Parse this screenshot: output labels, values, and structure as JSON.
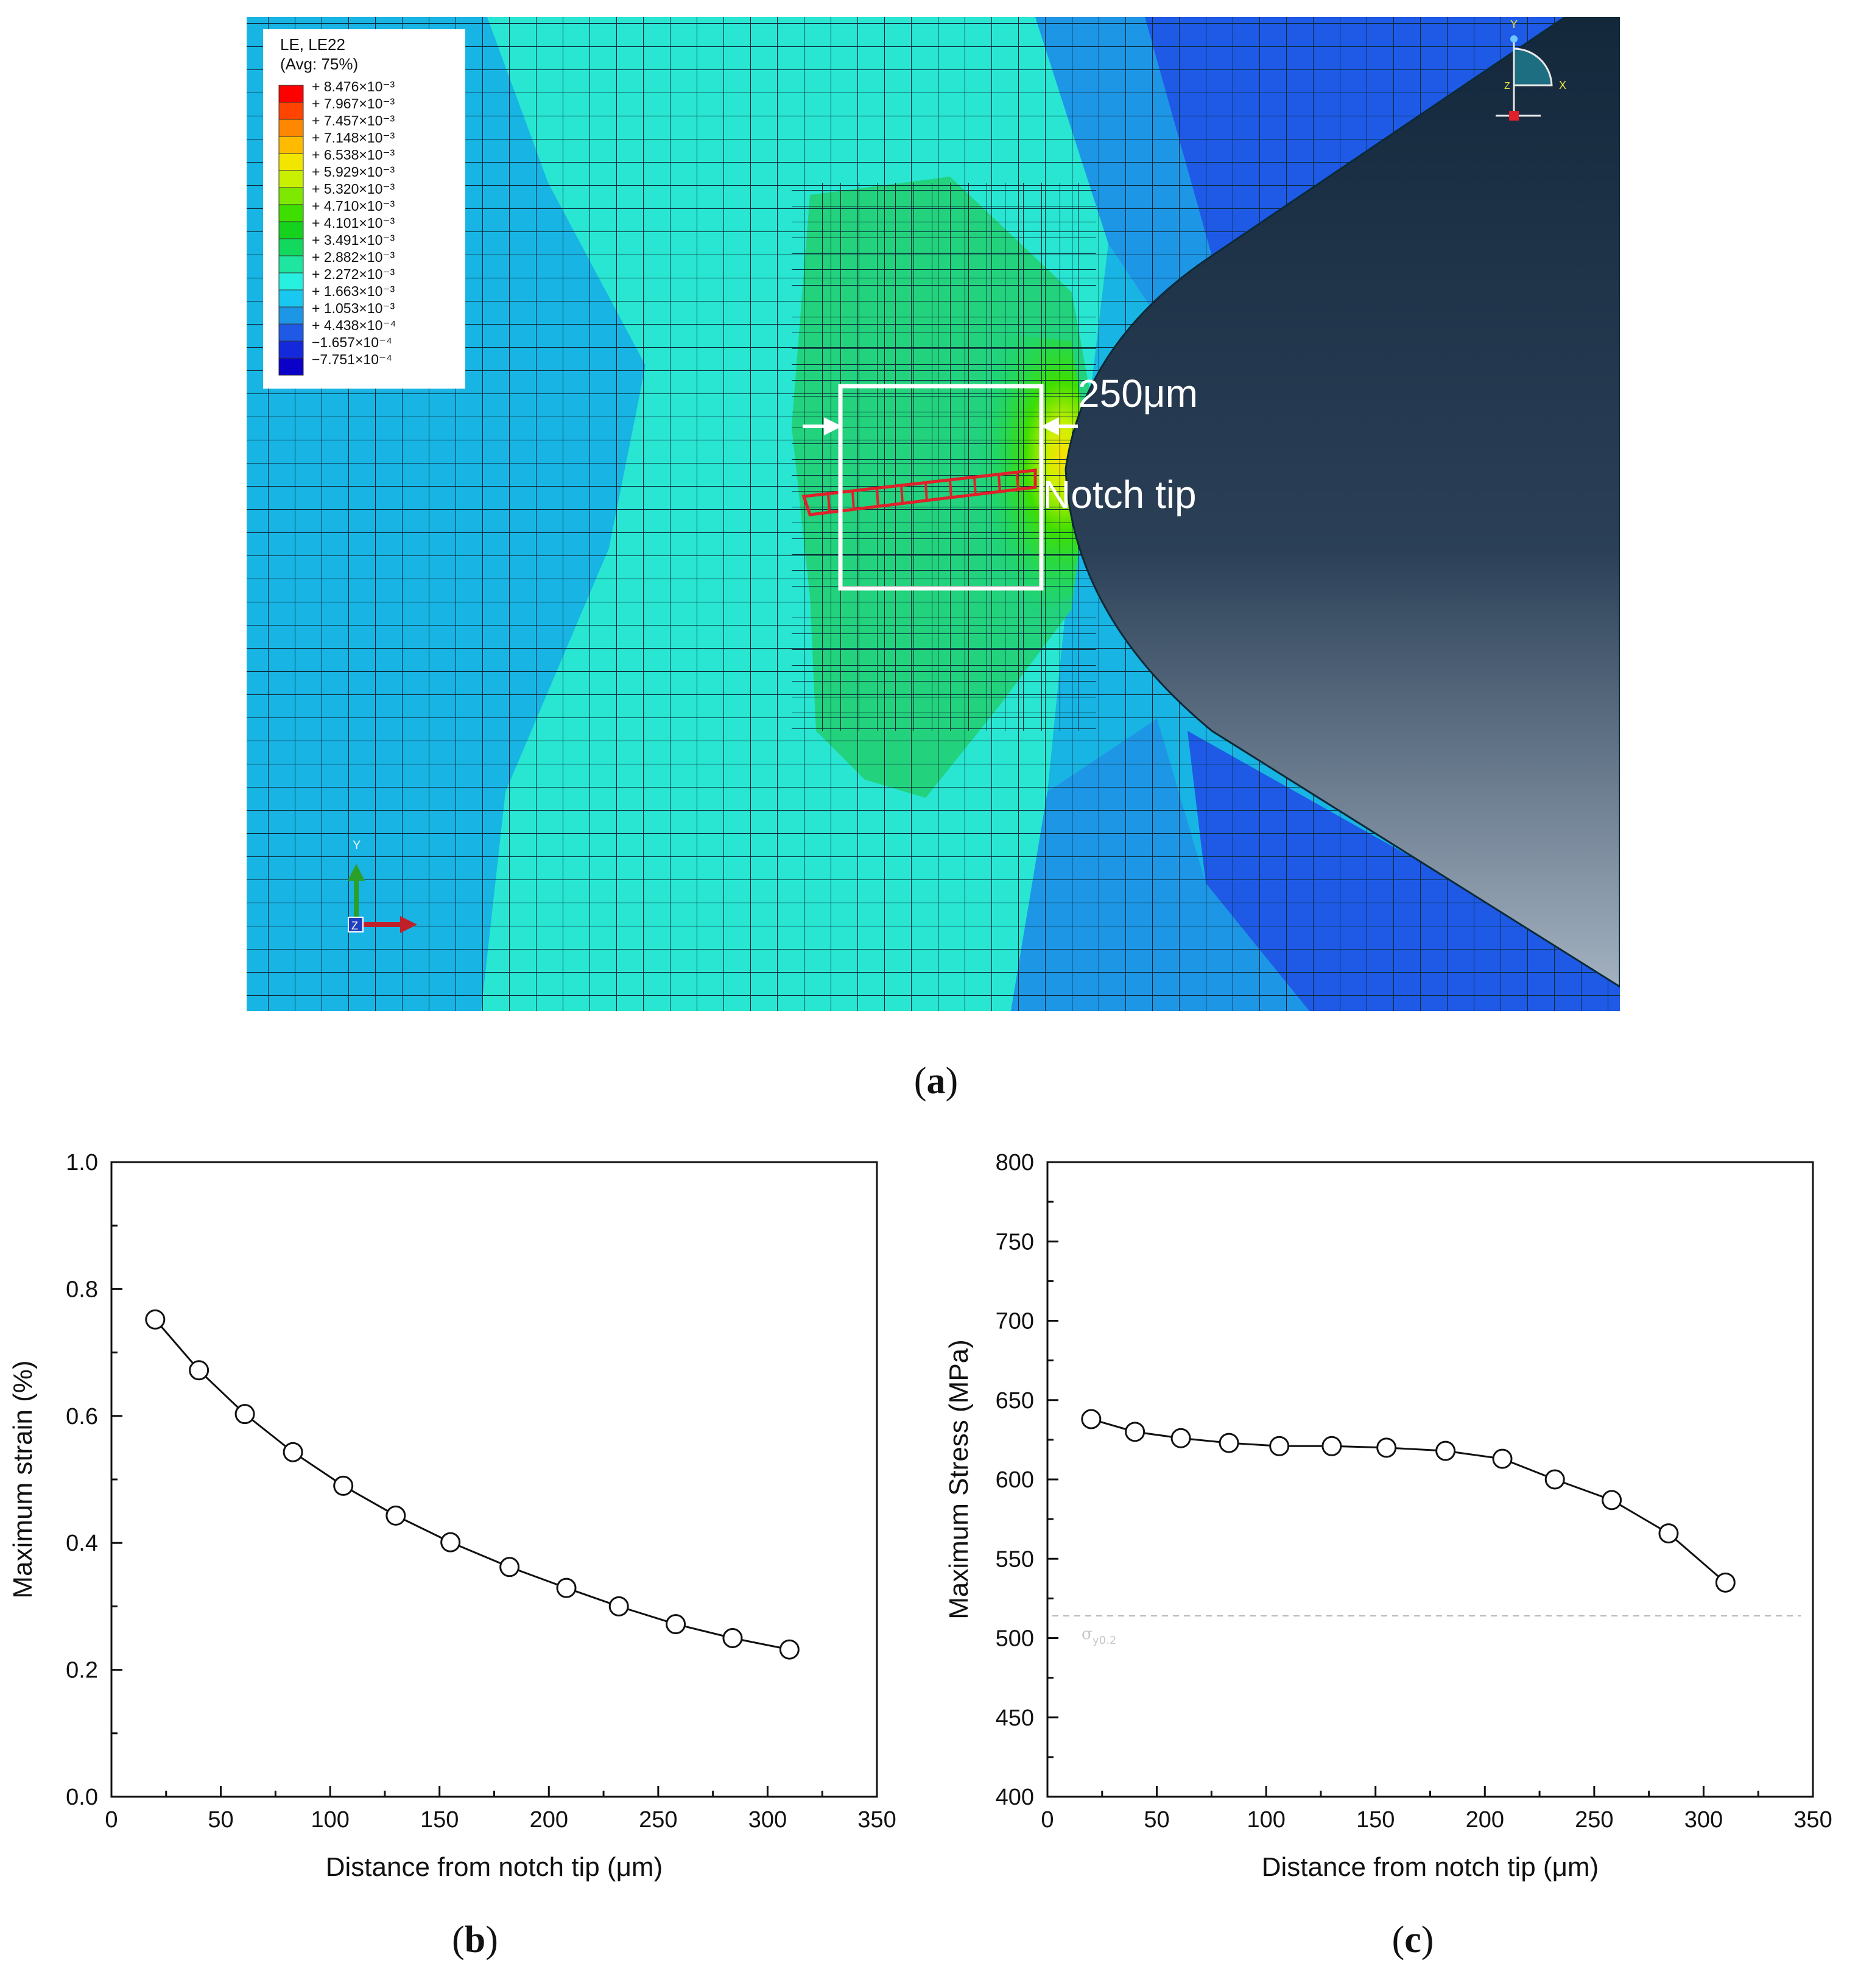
{
  "figure_a": {
    "caption": "a",
    "legend": {
      "title_line1": "LE, LE22",
      "title_line2": "(Avg: 75%)",
      "entries": [
        {
          "label": "+ 8.476×10⁻³",
          "color": "#ff0000"
        },
        {
          "label": "+ 7.967×10⁻³",
          "color": "#ff4400"
        },
        {
          "label": "+ 7.457×10⁻³",
          "color": "#ff8800"
        },
        {
          "label": "+ 7.148×10⁻³",
          "color": "#ffbb00"
        },
        {
          "label": "+ 6.538×10⁻³",
          "color": "#f2e600"
        },
        {
          "label": "+ 5.929×10⁻³",
          "color": "#c8f000"
        },
        {
          "label": "+ 5.320×10⁻³",
          "color": "#7fe800"
        },
        {
          "label": "+ 4.710×10⁻³",
          "color": "#3ede00"
        },
        {
          "label": "+ 4.101×10⁻³",
          "color": "#14d21e"
        },
        {
          "label": "+ 3.491×10⁻³",
          "color": "#12d95e"
        },
        {
          "label": "+ 2.882×10⁻³",
          "color": "#1ee6a0"
        },
        {
          "label": "+ 2.272×10⁻³",
          "color": "#28f0e0"
        },
        {
          "label": "+ 1.663×10⁻³",
          "color": "#18c8f0"
        },
        {
          "label": "+ 1.053×10⁻³",
          "color": "#1e96e6"
        },
        {
          "label": "+ 4.438×10⁻⁴",
          "color": "#1e5ae6"
        },
        {
          "label": "−1.657×10⁻⁴",
          "color": "#1428dc"
        },
        {
          "label": "−7.751×10⁻⁴",
          "color": "#0a00c8"
        }
      ]
    },
    "annotations": {
      "dimension": "250μm",
      "notch_tip": "Notch tip"
    },
    "triad_small": {
      "y": "Y",
      "x": "X",
      "z": "Z"
    },
    "triad_large": {
      "y": "Y",
      "z": "Z"
    }
  },
  "chart_data": [
    {
      "type": "line",
      "caption": "b",
      "title": "",
      "xlabel": "Distance from notch tip (μm)",
      "ylabel": "Maximum strain (%)",
      "xlim": [
        0,
        350
      ],
      "ylim": [
        0.0,
        1.0
      ],
      "xticks": [
        0,
        50,
        100,
        150,
        200,
        250,
        300,
        350
      ],
      "yticks": [
        0.0,
        0.2,
        0.4,
        0.6,
        0.8,
        1.0
      ],
      "ytick_labels": [
        "0.0",
        "0.2",
        "0.4",
        "0.6",
        "0.8",
        "1.0"
      ],
      "grid": false,
      "series": [
        {
          "name": "Maximum strain",
          "x": [
            20,
            40,
            61,
            83,
            106,
            130,
            155,
            182,
            208,
            232,
            258,
            284,
            310
          ],
          "y": [
            0.752,
            0.672,
            0.603,
            0.543,
            0.49,
            0.443,
            0.401,
            0.362,
            0.329,
            0.3,
            0.272,
            0.25,
            0.232
          ]
        }
      ]
    },
    {
      "type": "line",
      "caption": "c",
      "title": "",
      "xlabel": "Distance from notch tip (μm)",
      "ylabel": "Maximum Stress (MPa)",
      "xlim": [
        0,
        350
      ],
      "ylim": [
        400,
        800
      ],
      "xticks": [
        0,
        50,
        100,
        150,
        200,
        250,
        300,
        350
      ],
      "yticks": [
        400,
        450,
        500,
        550,
        600,
        650,
        700,
        750,
        800
      ],
      "ytick_labels": [
        "400",
        "450",
        "500",
        "550",
        "600",
        "650",
        "700",
        "750",
        "800"
      ],
      "grid": false,
      "series": [
        {
          "name": "Maximum stress",
          "x": [
            20,
            40,
            61,
            83,
            106,
            130,
            155,
            182,
            208,
            232,
            258,
            284,
            310
          ],
          "y": [
            638,
            630,
            626,
            623,
            621,
            621,
            620,
            618,
            613,
            600,
            587,
            566,
            535
          ]
        }
      ],
      "reference_line": {
        "y": 514,
        "label": "σ",
        "label_sub": "y0.2"
      }
    }
  ]
}
